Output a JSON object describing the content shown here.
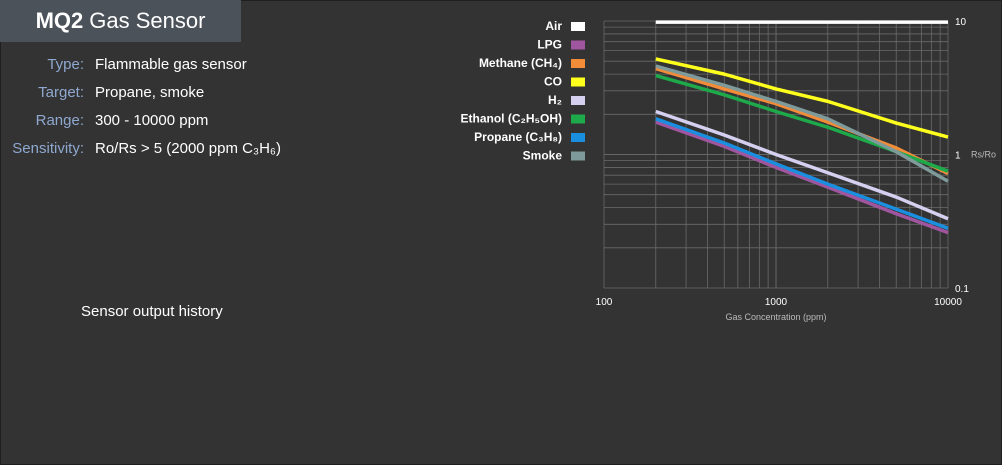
{
  "title": {
    "bold": "MQ2",
    "rest": "Gas Sensor"
  },
  "specs": [
    {
      "key": "Type:",
      "value": "Flammable gas sensor"
    },
    {
      "key": "Target:",
      "value": "Propane, smoke"
    },
    {
      "key": "Range:",
      "value": "300 - 10000 ppm"
    },
    {
      "key": "Sensitivity:",
      "value": "Ro/Rs > 5 (2000 ppm C₃H₆)"
    }
  ],
  "history_label": "Sensor output history",
  "colors": {
    "background": "#333333",
    "title_bar": "#4b5259",
    "spec_key": "#8fa8d0",
    "grid": "#6a6a6a"
  },
  "chart_data": {
    "type": "line",
    "xscale": "log",
    "yscale": "log",
    "xlabel": "Gas Concentration (ppm)",
    "ylabel": "Rs/Ro",
    "xlim": [
      100,
      10000
    ],
    "ylim": [
      0.1,
      10
    ],
    "xticks": [
      "100",
      "1000",
      "10000"
    ],
    "yticks": [
      "10",
      "1",
      "0.1"
    ],
    "legend_position": "left",
    "series": [
      {
        "name": "Air",
        "color": "#ffffff",
        "x": [
          200,
          10000
        ],
        "y": [
          9.8,
          9.8
        ]
      },
      {
        "name": "LPG",
        "color": "#a0559f",
        "x": [
          200,
          500,
          1000,
          2000,
          5000,
          10000
        ],
        "y": [
          1.75,
          1.15,
          0.8,
          0.57,
          0.36,
          0.26
        ]
      },
      {
        "name": "Methane (CH₄)",
        "color": "#f28c38",
        "x": [
          200,
          500,
          1000,
          2000,
          5000,
          10000
        ],
        "y": [
          4.4,
          3.1,
          2.4,
          1.75,
          1.12,
          0.72
        ]
      },
      {
        "name": "CO",
        "color": "#ffff1e",
        "x": [
          200,
          500,
          1000,
          2000,
          5000,
          10000
        ],
        "y": [
          5.2,
          4.0,
          3.1,
          2.5,
          1.72,
          1.35
        ]
      },
      {
        "name": "H₂",
        "color": "#d5cff0",
        "x": [
          200,
          500,
          1000,
          2000,
          5000,
          10000
        ],
        "y": [
          2.1,
          1.4,
          1.0,
          0.73,
          0.48,
          0.33
        ]
      },
      {
        "name": "Ethanol (C₂H₅OH)",
        "color": "#1ea94a",
        "x": [
          200,
          500,
          1000,
          2000,
          5000,
          10000
        ],
        "y": [
          3.9,
          2.8,
          2.1,
          1.6,
          1.05,
          0.75
        ]
      },
      {
        "name": "Propane (C₃H₈)",
        "color": "#1a8fe0",
        "x": [
          200,
          500,
          1000,
          2000,
          5000,
          10000
        ],
        "y": [
          1.85,
          1.22,
          0.85,
          0.6,
          0.39,
          0.28
        ]
      },
      {
        "name": "Smoke",
        "color": "#7f9a9a",
        "x": [
          200,
          500,
          1000,
          2000,
          5000,
          10000
        ],
        "y": [
          4.6,
          3.3,
          2.5,
          1.85,
          1.05,
          0.63
        ]
      }
    ]
  }
}
